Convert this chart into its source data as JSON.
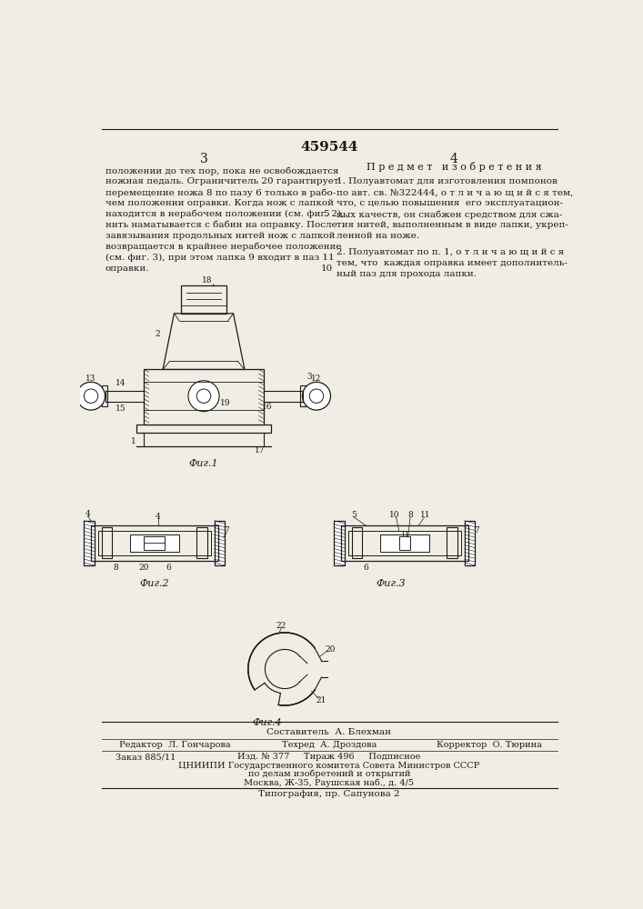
{
  "patent_number": "459544",
  "page_left": "3",
  "page_right": "4",
  "bg_color": "#f0ede4",
  "text_color": "#1a1a1a",
  "left_text": "положении до тех пор, пока не освобождается\nножная педаль. Ограничитель 20 гарантирует\nперемещение ножа 8 по пазу 6 только в рабо-\nчем положении оправки. Когда нож с лапкой\nнаходится в нерабочем положении (см. фиг. 2),\nнить наматывается с бабин на оправку. После\nзавязывания продольных нитей нож с лапкой\nвозвращается в крайнее нерабочее положение\n(см. фиг. 3), при этом лапка 9 входит в паз 11\nоправки.",
  "right_heading": "П р е д м е т   и з о б р е т е н и я",
  "right_text_1": "1. Полуавтомат для изготовления помпонов\nпо авт. св. №322444, о т л и ч а ю щ и й с я тем,\nчто, с целью повышения  его эксплуатацион-\nных качеств, он снабжен средством для сжа-\nтия нитей, выполненным в виде лапки, укреп-\nленной на ноже.",
  "right_text_2": "2. Полуавтомат по п. 1, о т л и ч а ю щ и й с я\nтем, что  каждая оправка имеет дополнитель-\nный паз для прохода лапки.",
  "footer_line1": "Составитель  А. Блехман",
  "footer_line2_left": "Редактор  Л. Гончарова",
  "footer_line2_mid": "Техред  А. Дроздова",
  "footer_line2_right": "Корректор  О. Тюрина",
  "footer_line3_left": "Заказ 885/11",
  "footer_line3_mid": "Изд. № 377     Тираж 496     Подписное",
  "footer_line3_mid2": "ЦНИИПИ Государственного комитета Совета Министров СССР",
  "footer_line3_mid3": "по делам изобретений и открытий",
  "footer_line3_mid4": "Москва, Ж-35, Раушская наб., д. 4/5",
  "footer_line4": "Типография, пр. Сапунова 2"
}
